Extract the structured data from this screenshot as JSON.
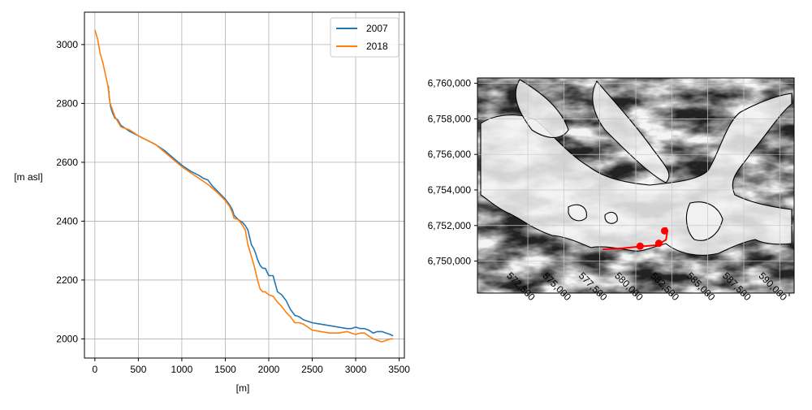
{
  "chart_data": [
    {
      "type": "line",
      "xlabel": "[m]",
      "ylabel": "[m asl]",
      "xlim": [
        -120,
        3560
      ],
      "ylim": [
        1935,
        3110
      ],
      "xticks": [
        0,
        500,
        1000,
        1500,
        2000,
        2500,
        3000,
        3500
      ],
      "yticks": [
        2000,
        2200,
        2400,
        2600,
        2800,
        3000
      ],
      "grid": true,
      "legend_position": "top-right",
      "series": [
        {
          "name": "2007",
          "color": "#1f77b4",
          "x": [
            155,
            165,
            180,
            200,
            230,
            260,
            300,
            400,
            500,
            600,
            700,
            800,
            900,
            1000,
            1100,
            1200,
            1250,
            1300,
            1350,
            1400,
            1450,
            1500,
            1550,
            1580,
            1600,
            1650,
            1700,
            1730,
            1760,
            1800,
            1830,
            1850,
            1870,
            1900,
            1930,
            1960,
            2000,
            2050,
            2100,
            2150,
            2200,
            2250,
            2300,
            2350,
            2400,
            2450,
            2500,
            2600,
            2700,
            2800,
            2900,
            2950,
            3000,
            3050,
            3100,
            3150,
            3200,
            3250,
            3300,
            3350,
            3400,
            3430
          ],
          "y": [
            2860,
            2820,
            2790,
            2770,
            2750,
            2745,
            2725,
            2705,
            2690,
            2675,
            2660,
            2640,
            2615,
            2590,
            2570,
            2555,
            2545,
            2540,
            2520,
            2505,
            2490,
            2475,
            2455,
            2440,
            2420,
            2405,
            2395,
            2385,
            2370,
            2320,
            2305,
            2290,
            2270,
            2250,
            2240,
            2240,
            2215,
            2215,
            2160,
            2150,
            2130,
            2100,
            2080,
            2075,
            2065,
            2060,
            2055,
            2050,
            2045,
            2040,
            2035,
            2035,
            2040,
            2035,
            2035,
            2030,
            2020,
            2025,
            2025,
            2020,
            2015,
            2010
          ]
        },
        {
          "name": "2018",
          "color": "#ff7f0e",
          "x": [
            0,
            30,
            60,
            90,
            120,
            150,
            175,
            200,
            230,
            260,
            300,
            400,
            500,
            600,
            700,
            800,
            900,
            1000,
            1100,
            1200,
            1300,
            1400,
            1500,
            1550,
            1580,
            1600,
            1650,
            1700,
            1730,
            1760,
            1800,
            1840,
            1870,
            1900,
            1930,
            1960,
            2000,
            2050,
            2100,
            2150,
            2200,
            2250,
            2300,
            2350,
            2400,
            2450,
            2500,
            2600,
            2700,
            2800,
            2900,
            2950,
            3000,
            3050,
            3100,
            3150,
            3200,
            3250,
            3300,
            3350,
            3400,
            3430
          ],
          "y": [
            3050,
            3020,
            2970,
            2940,
            2900,
            2860,
            2800,
            2780,
            2755,
            2740,
            2720,
            2710,
            2690,
            2675,
            2660,
            2635,
            2610,
            2585,
            2565,
            2545,
            2525,
            2500,
            2470,
            2450,
            2430,
            2410,
            2405,
            2385,
            2370,
            2320,
            2280,
            2240,
            2200,
            2170,
            2160,
            2160,
            2150,
            2145,
            2125,
            2110,
            2090,
            2075,
            2055,
            2055,
            2050,
            2040,
            2030,
            2025,
            2020,
            2020,
            2025,
            2020,
            2015,
            2020,
            2020,
            2010,
            2000,
            1995,
            1990,
            1995,
            2000,
            2000
          ]
        }
      ]
    },
    {
      "type": "map",
      "xlim": [
        569000,
        591000
      ],
      "ylim": [
        6748200,
        6760300
      ],
      "xticks": [
        572500,
        575000,
        577500,
        580000,
        582500,
        585000,
        587500,
        590000
      ],
      "xtick_labels": [
        "572,500",
        "575,000",
        "577,500",
        "580,000",
        "582,500",
        "585,000",
        "587,500",
        "590,000"
      ],
      "yticks": [
        6750000,
        6752000,
        6754000,
        6756000,
        6758000,
        6760000
      ],
      "ytick_labels": [
        "6,750,000",
        "6,752,000",
        "6,754,000",
        "6,756,000",
        "6,758,000",
        "6,760,000"
      ],
      "grid": true,
      "background": "hillshade (grayscale)",
      "profile_line": {
        "color": "#ff0000",
        "points": [
          [
            577700,
            6750660
          ],
          [
            579100,
            6750720
          ],
          [
            580300,
            6750820
          ],
          [
            581500,
            6750900
          ],
          [
            582100,
            6751200
          ],
          [
            582200,
            6751700
          ],
          [
            582100,
            6751900
          ]
        ],
        "markers": [
          [
            580300,
            6750840
          ],
          [
            581600,
            6751000
          ],
          [
            582000,
            6751700
          ]
        ]
      }
    }
  ]
}
